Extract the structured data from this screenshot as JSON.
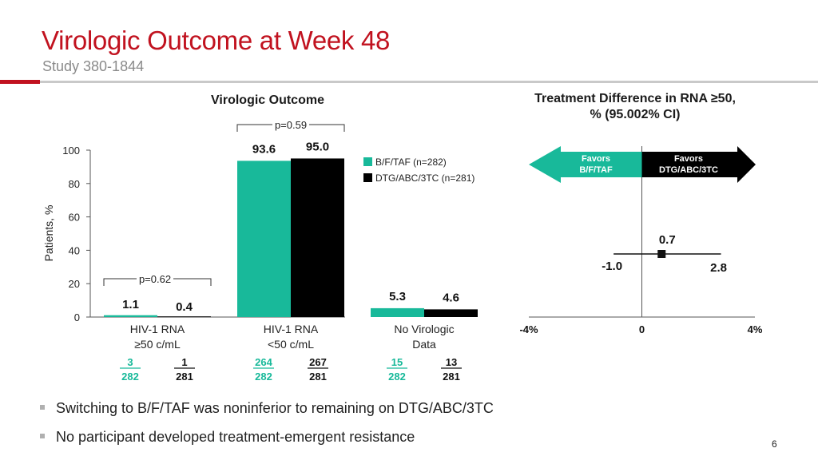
{
  "slide": {
    "title": "Virologic Outcome at Week 48",
    "subtitle": "Study 380-1844",
    "page_number": "6",
    "accent_color": "#c1121f"
  },
  "left_panel_title": "Virologic Outcome",
  "right_panel_title_line1": "Treatment Difference in RNA ≥50,",
  "right_panel_title_line2": "% (95.002% CI)",
  "legend": [
    {
      "label": "B/F/TAF (n=282)",
      "color": "#18b99a"
    },
    {
      "label": "DTG/ABC/3TC (n=281)",
      "color": "#000000"
    }
  ],
  "p_values": [
    {
      "label": "p=0.62",
      "group": 0
    },
    {
      "label": "p=0.59",
      "group": 1
    }
  ],
  "counts": [
    {
      "bftaf": {
        "num": "3",
        "den": "282"
      },
      "dtg": {
        "num": "1",
        "den": "281"
      }
    },
    {
      "bftaf": {
        "num": "264",
        "den": "282"
      },
      "dtg": {
        "num": "267",
        "den": "281"
      }
    },
    {
      "bftaf": {
        "num": "15",
        "den": "282"
      },
      "dtg": {
        "num": "13",
        "den": "281"
      }
    }
  ],
  "bullets": [
    "Switching to B/F/TAF was noninferior to remaining on DTG/ABC/3TC",
    "No participant developed treatment-emergent resistance"
  ],
  "chart_data": [
    {
      "type": "bar",
      "title": "Virologic Outcome",
      "ylabel": "Patients, %",
      "ylim": [
        0,
        100
      ],
      "yticks": [
        "0",
        "20",
        "40",
        "60",
        "80",
        "100"
      ],
      "categories": [
        [
          "HIV-1 RNA",
          "≥50 c/mL"
        ],
        [
          "HIV-1 RNA",
          "<50 c/mL"
        ],
        [
          "No Virologic",
          "Data"
        ]
      ],
      "series": [
        {
          "name": "B/F/TAF (n=282)",
          "color": "#18b99a",
          "values": [
            1.1,
            93.6,
            5.3
          ],
          "labels": [
            "1.1",
            "93.6",
            "5.3"
          ]
        },
        {
          "name": "DTG/ABC/3TC (n=281)",
          "color": "#000000",
          "values": [
            0.4,
            95.0,
            4.6
          ],
          "labels": [
            "0.4",
            "95.0",
            "4.6"
          ]
        }
      ]
    },
    {
      "type": "forest",
      "title": "Treatment Difference in RNA ≥50, % (95.002% CI)",
      "xlim": [
        -4,
        4
      ],
      "xticks": [
        {
          "value": -4,
          "label": "-4%"
        },
        {
          "value": 0,
          "label": "0"
        },
        {
          "value": 4,
          "label": "4%"
        }
      ],
      "point": 0.7,
      "ci": [
        -1.0,
        2.8
      ],
      "point_label": "0.7",
      "ci_labels": [
        "-1.0",
        "2.8"
      ],
      "favors_left": [
        "Favors",
        "B/F/TAF"
      ],
      "favors_right": [
        "Favors",
        "DTG/ABC/3TC"
      ],
      "favors_left_color": "#18b99a",
      "favors_right_color": "#000000"
    }
  ]
}
